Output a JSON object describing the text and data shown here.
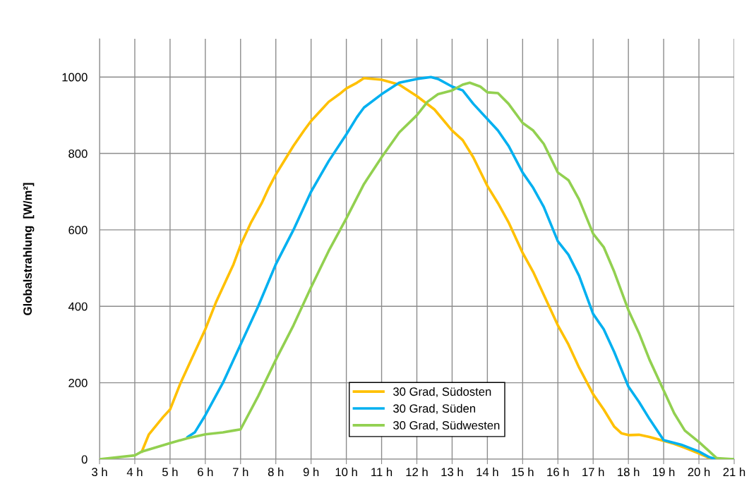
{
  "chart_data": {
    "type": "line",
    "ylabel": "Globalstrahlung  [W/m²]",
    "xlim": [
      3,
      21
    ],
    "ylim": [
      0,
      1100
    ],
    "xticks": [
      {
        "value": 3,
        "label": "3 h"
      },
      {
        "value": 4,
        "label": "4 h"
      },
      {
        "value": 5,
        "label": "5 h"
      },
      {
        "value": 6,
        "label": "6 h"
      },
      {
        "value": 7,
        "label": "7 h"
      },
      {
        "value": 8,
        "label": "8 h"
      },
      {
        "value": 9,
        "label": "9 h"
      },
      {
        "value": 10,
        "label": "10 h"
      },
      {
        "value": 11,
        "label": "11 h"
      },
      {
        "value": 12,
        "label": "12 h"
      },
      {
        "value": 13,
        "label": "13 h"
      },
      {
        "value": 14,
        "label": "14 h"
      },
      {
        "value": 15,
        "label": "15 h"
      },
      {
        "value": 16,
        "label": "16 h"
      },
      {
        "value": 17,
        "label": "17 h"
      },
      {
        "value": 18,
        "label": "18 h"
      },
      {
        "value": 19,
        "label": "19 h"
      },
      {
        "value": 20,
        "label": "20 h"
      },
      {
        "value": 21,
        "label": "21 h"
      }
    ],
    "yticks": [
      0,
      200,
      400,
      600,
      800,
      1000
    ],
    "grid": true,
    "legend": "bottom",
    "marker": "none",
    "line_style": "solid",
    "series": [
      {
        "name": "30 Grad, Südosten",
        "color": "#ffc000",
        "x": [
          4.2,
          4.4,
          4.8,
          5,
          5.3,
          5.5,
          5.8,
          6,
          6.3,
          6.6,
          6.8,
          7,
          7.3,
          7.6,
          7.8,
          8,
          8.3,
          8.5,
          8.8,
          9,
          9.3,
          9.5,
          9.8,
          10,
          10.3,
          10.5,
          11,
          11.5,
          12,
          12.5,
          13,
          13.3,
          13.6,
          14,
          14.3,
          14.6,
          15,
          15.3,
          15.6,
          16,
          16.3,
          16.6,
          17,
          17.3,
          17.6,
          17.8,
          18,
          18.3,
          18.6,
          19,
          19.3,
          19.6,
          20,
          20.3,
          20.5,
          21
        ],
        "values": [
          20,
          65,
          110,
          130,
          200,
          240,
          300,
          340,
          410,
          470,
          510,
          560,
          620,
          670,
          710,
          745,
          790,
          820,
          860,
          885,
          915,
          935,
          955,
          970,
          985,
          997,
          993,
          980,
          950,
          915,
          860,
          835,
          790,
          715,
          670,
          620,
          540,
          490,
          430,
          350,
          300,
          240,
          170,
          130,
          85,
          68,
          63,
          64,
          58,
          48,
          40,
          30,
          15,
          3,
          0,
          0
        ]
      },
      {
        "name": "30 Grad, Süden",
        "color": "#00b0f0",
        "x": [
          5.5,
          5.7,
          6,
          6.5,
          7,
          7.5,
          8,
          8.5,
          9,
          9.5,
          10,
          10.3,
          10.5,
          11,
          11.5,
          12,
          12.4,
          12.6,
          13,
          13.3,
          13.6,
          14,
          14.3,
          14.6,
          15,
          15.3,
          15.6,
          16,
          16.3,
          16.6,
          17,
          17.3,
          17.6,
          18,
          18.3,
          18.6,
          19,
          19.5,
          20,
          20.3,
          20.5,
          21
        ],
        "values": [
          58,
          70,
          115,
          200,
          300,
          400,
          510,
          600,
          700,
          780,
          850,
          895,
          920,
          955,
          985,
          995,
          1000,
          995,
          975,
          965,
          930,
          890,
          860,
          820,
          750,
          710,
          660,
          570,
          535,
          480,
          380,
          340,
          280,
          190,
          150,
          105,
          50,
          38,
          20,
          5,
          0,
          0
        ]
      },
      {
        "name": "30 Grad, Südwesten",
        "color": "#92d050",
        "x": [
          3,
          4,
          4.2,
          5,
          5.5,
          6,
          6.5,
          6.8,
          7,
          7.5,
          8,
          8.5,
          9,
          9.5,
          10,
          10.5,
          11,
          11.5,
          12,
          12.3,
          12.6,
          13,
          13.3,
          13.5,
          13.8,
          14,
          14.3,
          14.6,
          15,
          15.3,
          15.6,
          16,
          16.3,
          16.6,
          17,
          17.3,
          17.6,
          18,
          18.3,
          18.6,
          19,
          19.3,
          19.6,
          20,
          20.3,
          20.5,
          21
        ],
        "values": [
          0,
          10,
          20,
          42,
          55,
          65,
          70,
          75,
          78,
          165,
          260,
          350,
          450,
          545,
          630,
          720,
          790,
          855,
          900,
          935,
          955,
          965,
          980,
          985,
          975,
          960,
          958,
          930,
          880,
          860,
          825,
          750,
          730,
          680,
          590,
          555,
          490,
          390,
          330,
          260,
          180,
          120,
          75,
          45,
          20,
          3,
          0
        ]
      }
    ]
  }
}
